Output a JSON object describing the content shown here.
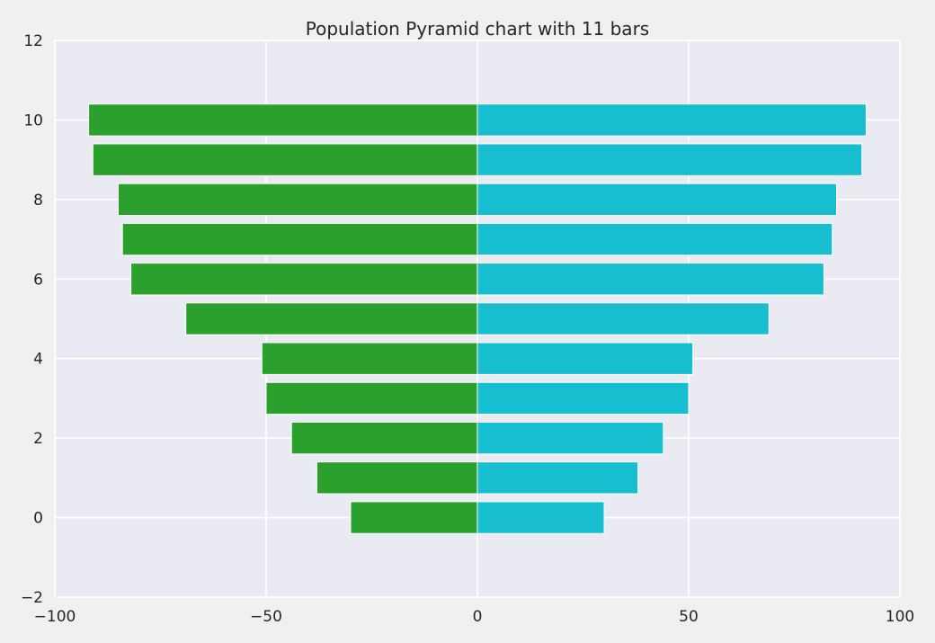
{
  "chart_data": {
    "type": "bar",
    "orientation": "horizontal",
    "title": "Population Pyramid chart with 11 bars",
    "xlabel": "",
    "ylabel": "",
    "xlim": [
      -100,
      100
    ],
    "ylim": [
      -2,
      12
    ],
    "grid": true,
    "x_ticks": [
      "−100",
      "−50",
      "0",
      "50",
      "100"
    ],
    "x_tick_values": [
      -100,
      -50,
      0,
      50,
      100
    ],
    "y_ticks": [
      "−2",
      "0",
      "2",
      "4",
      "6",
      "8",
      "10",
      "12"
    ],
    "y_tick_values": [
      -2,
      0,
      2,
      4,
      6,
      8,
      10,
      12
    ],
    "categories": [
      0,
      1,
      2,
      3,
      4,
      5,
      6,
      7,
      8,
      9,
      10
    ],
    "series": [
      {
        "values": [
          -30,
          -38,
          -44,
          -50,
          -51,
          -69,
          -82,
          -84,
          -85,
          -91,
          -92
        ],
        "color": "#2ca02c"
      },
      {
        "values": [
          30,
          38,
          44,
          50,
          51,
          69,
          82,
          84,
          85,
          91,
          92
        ],
        "color": "#17becf"
      }
    ],
    "colors": {
      "plot_background": "#eaeaf2",
      "grid": "#ffffff",
      "page_background": "#f0f0f0"
    }
  }
}
